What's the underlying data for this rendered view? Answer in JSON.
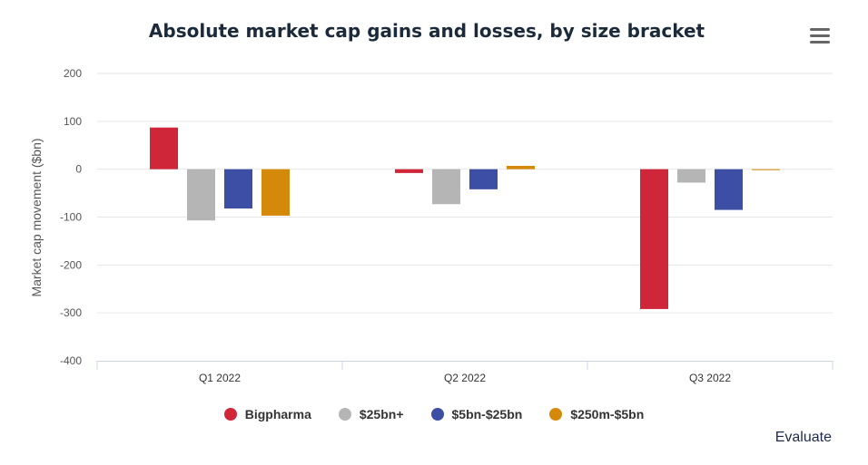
{
  "chart_data": {
    "type": "bar",
    "title": "Absolute market cap gains and losses, by size bracket",
    "xlabel": "",
    "ylabel": "Market cap movement ($bn)",
    "ylim": [
      -400,
      200
    ],
    "yticks": [
      200,
      100,
      0,
      -100,
      -200,
      -300,
      -400
    ],
    "categories": [
      "Q1 2022",
      "Q2 2022",
      "Q3 2022"
    ],
    "series": [
      {
        "name": "Bigpharma",
        "color": "#d0263a",
        "values": [
          87,
          -8,
          -292
        ]
      },
      {
        "name": "$25bn+",
        "color": "#b5b5b5",
        "values": [
          -107,
          -73,
          -28
        ]
      },
      {
        "name": "$5bn-$25bn",
        "color": "#3c4fa5",
        "values": [
          -82,
          -42,
          -85
        ]
      },
      {
        "name": "$250m-$5bn",
        "color": "#d4890b",
        "values": [
          -97,
          7,
          -1
        ]
      }
    ],
    "legend_position": "bottom",
    "grid": true
  },
  "menu_icon": "hamburger-menu-icon",
  "credit": "Evaluate"
}
